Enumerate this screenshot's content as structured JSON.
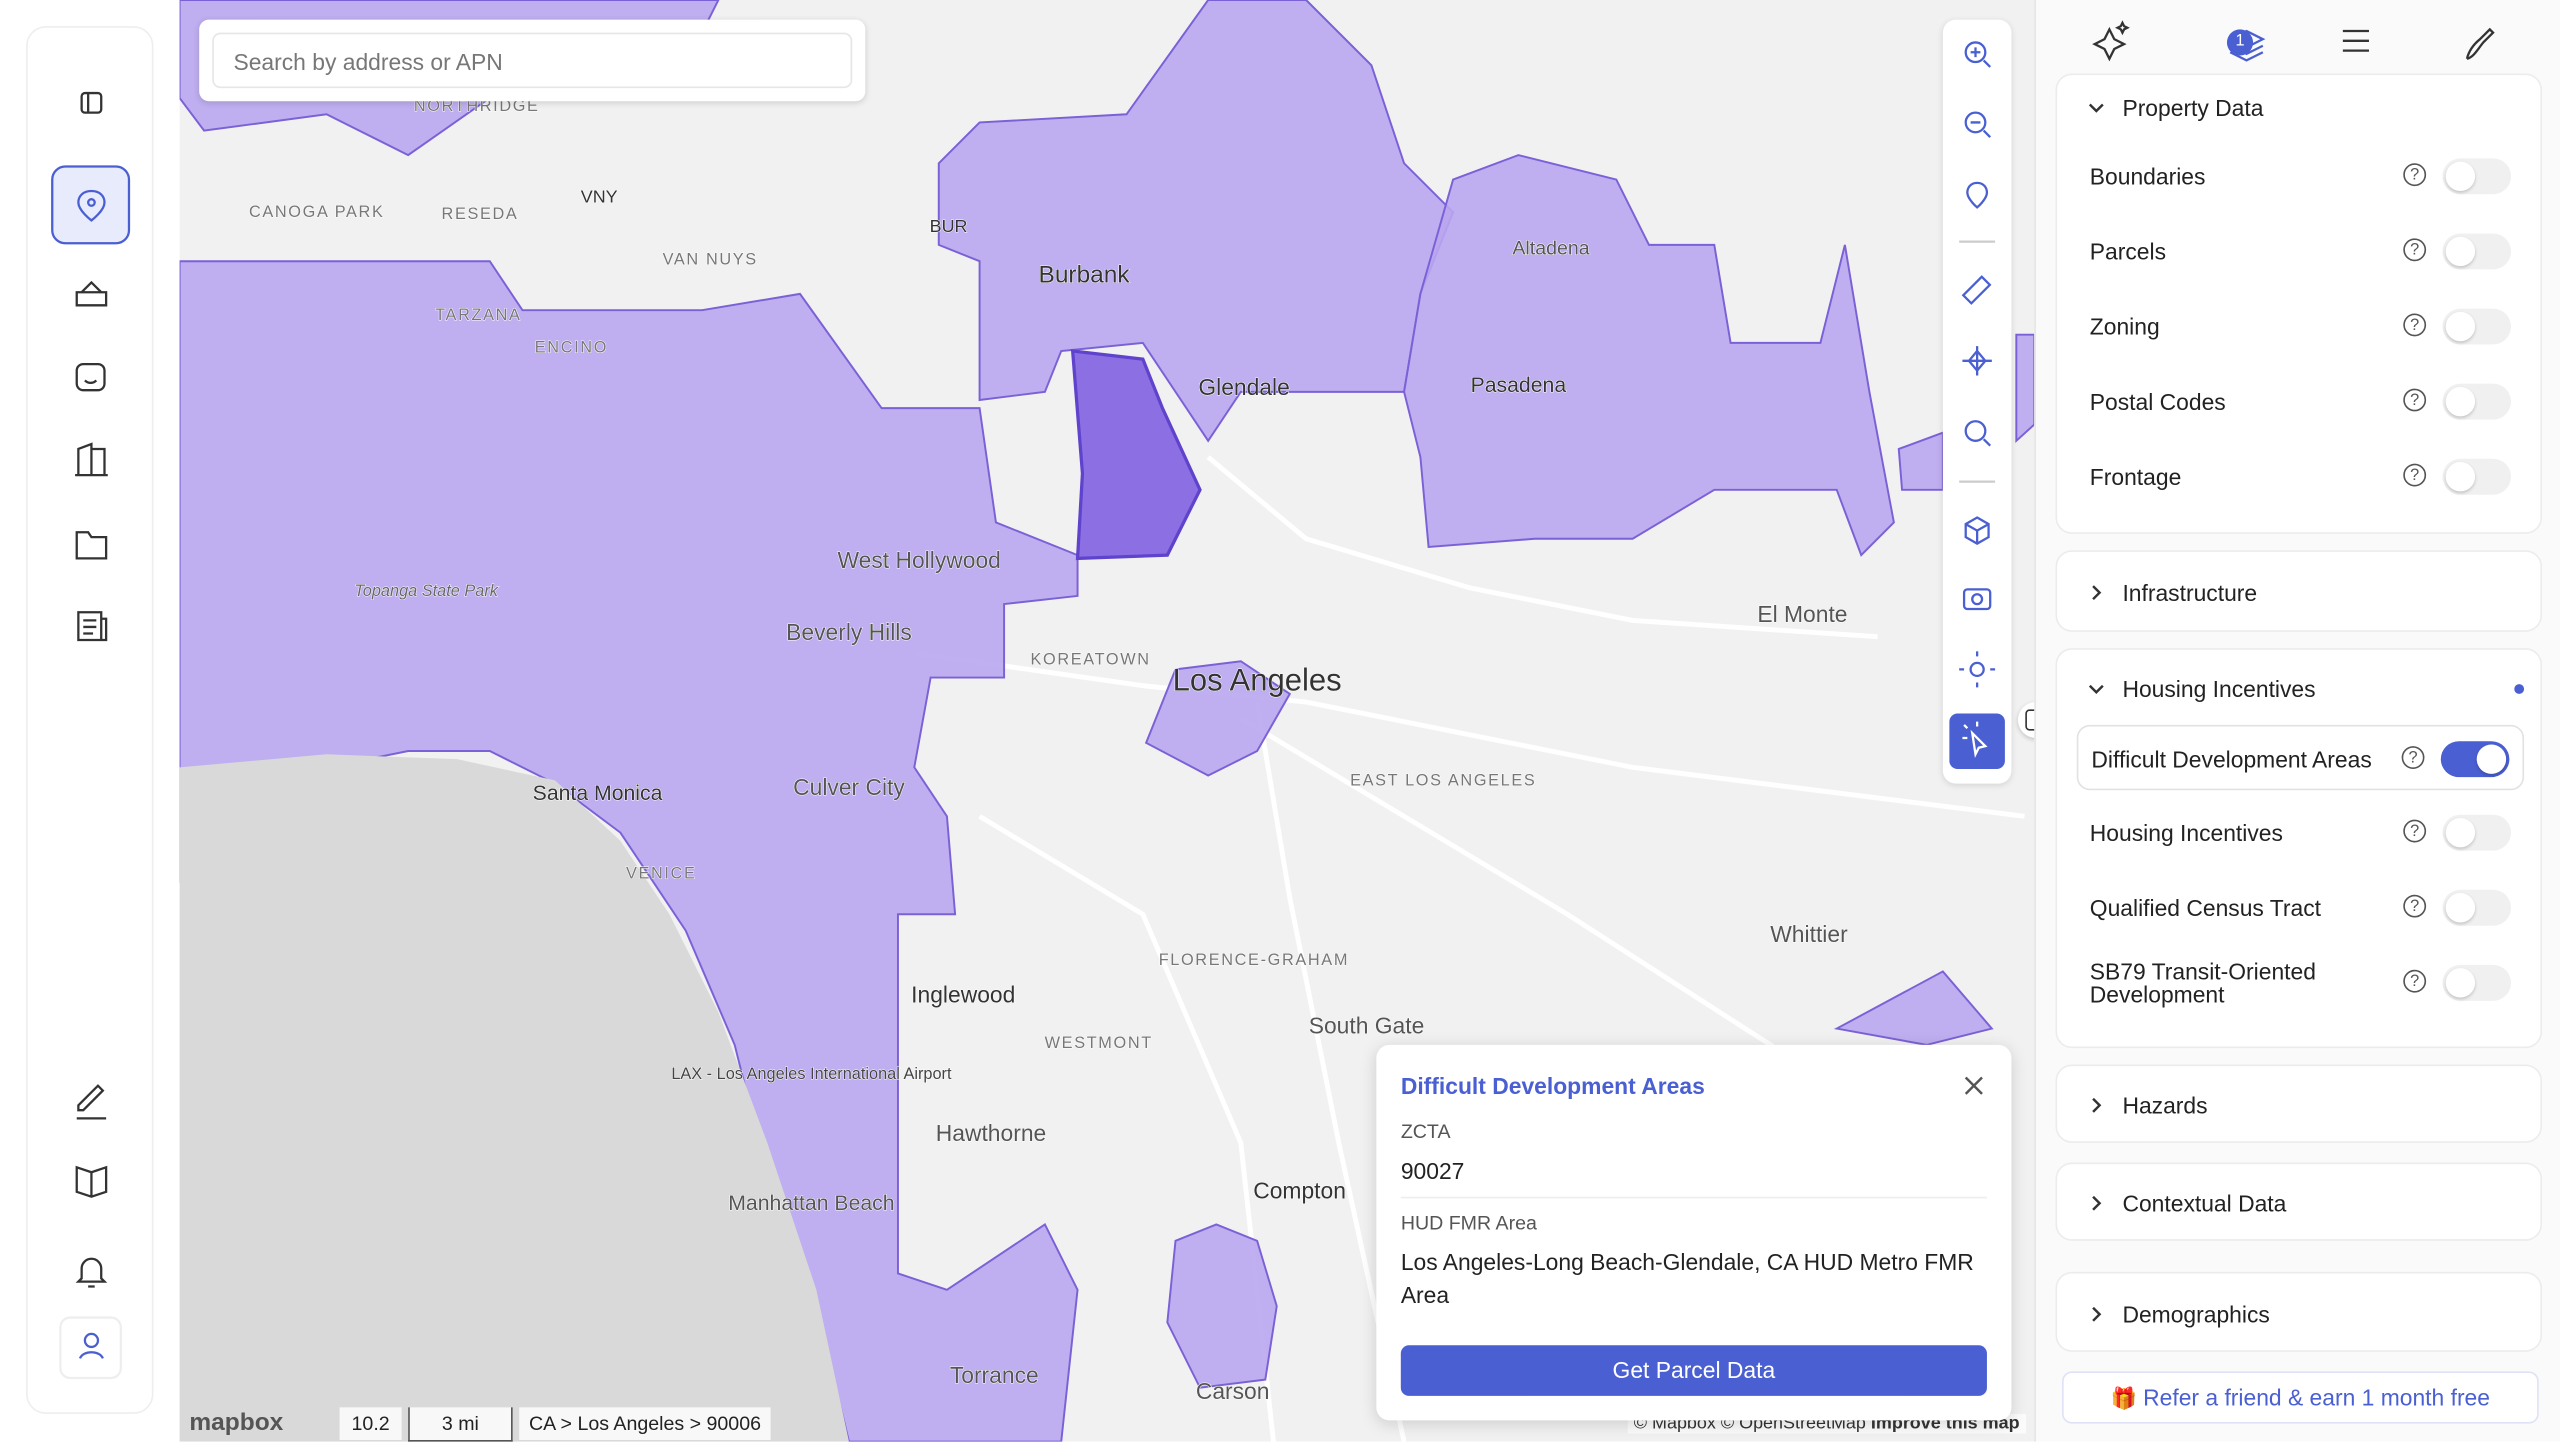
{
  "search_placeholder": "Search by address or APN",
  "map": {
    "labels": [
      "Burbank",
      "Glendale",
      "Pasadena",
      "Los Angeles",
      "West Hollywood",
      "Beverly Hills",
      "Santa Monica",
      "Culver City",
      "Inglewood",
      "Hawthorne",
      "Compton",
      "Carson",
      "Torrance",
      "South Gate",
      "Whittier",
      "El Monte",
      "Manhattan Beach",
      "Altadena",
      "KOREATOWN",
      "EAST LOS ANGELES",
      "FLORENCE-GRAHAM",
      "WESTMONT",
      "VAN NUYS",
      "TARZANA",
      "ENCINO",
      "RESEDA",
      "CANOGA PARK",
      "NORTHRIDGE",
      "VNY",
      "BUR",
      "Topanga State Park",
      "LAX - Los Angeles International Airport",
      "VENICE"
    ],
    "logo": "mapbox",
    "zoom": "10.2",
    "distance": "3 mi",
    "breadcrumb": "CA > Los Angeles > 90006",
    "attribution": "© Mapbox © OpenStreetMap",
    "improve": "Improve this map"
  },
  "popup": {
    "title": "Difficult Development Areas",
    "fields": [
      {
        "label": "ZCTA",
        "value": "90027"
      },
      {
        "label": "HUD FMR Area",
        "value": "Los Angeles-Long Beach-Glendale, CA HUD Metro FMR Area"
      }
    ],
    "button": "Get Parcel Data"
  },
  "panel": {
    "badge": "1",
    "sections": [
      {
        "title": "Property Data",
        "expanded": true,
        "layers": [
          {
            "name": "Boundaries",
            "on": false
          },
          {
            "name": "Parcels",
            "on": false
          },
          {
            "name": "Zoning",
            "on": false
          },
          {
            "name": "Postal Codes",
            "on": false
          },
          {
            "name": "Frontage",
            "on": false
          }
        ]
      },
      {
        "title": "Infrastructure",
        "expanded": false
      },
      {
        "title": "Housing Incentives",
        "expanded": true,
        "indicator": true,
        "layers": [
          {
            "name": "Difficult Development Areas",
            "on": true
          },
          {
            "name": "Housing Incentives",
            "on": false
          },
          {
            "name": "Qualified Census Tract",
            "on": false
          },
          {
            "name": "SB79 Transit-Oriented Development",
            "on": false
          }
        ]
      },
      {
        "title": "Hazards",
        "expanded": false
      },
      {
        "title": "Contextual Data",
        "expanded": false
      },
      {
        "title": "Demographics",
        "expanded": false
      }
    ],
    "referral": "Refer a friend & earn 1 month free"
  }
}
